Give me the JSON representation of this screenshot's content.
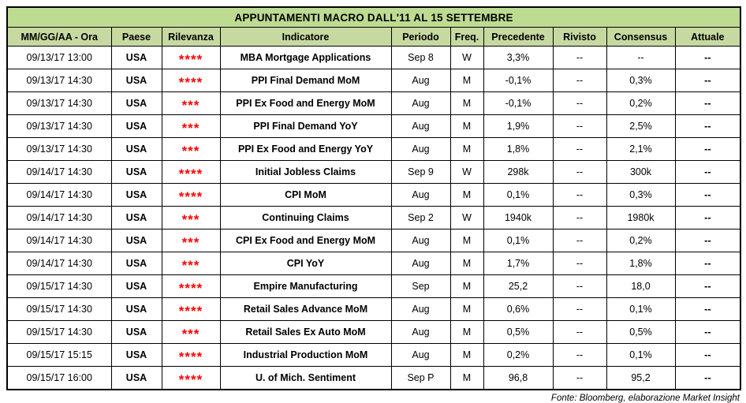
{
  "title": "APPUNTAMENTI MACRO DALL'11 AL 15 SETTEMBRE",
  "columns": [
    "MM/GG/AA - Ora",
    "Paese",
    "Rilevanza",
    "Indicatore",
    "Periodo",
    "Freq.",
    "Precedente",
    "Rivisto",
    "Consensus",
    "Attuale"
  ],
  "rows": [
    {
      "datetime": "09/13/17 13:00",
      "country": "USA",
      "relevance": "****",
      "indicator": "MBA Mortgage Applications",
      "period": "Sep 8",
      "freq": "W",
      "previous": "3,3%",
      "revised": "--",
      "consensus": "--",
      "actual": "--"
    },
    {
      "datetime": "09/13/17 14:30",
      "country": "USA",
      "relevance": "****",
      "indicator": "PPI Final Demand MoM",
      "period": "Aug",
      "freq": "M",
      "previous": "-0,1%",
      "revised": "--",
      "consensus": "0,3%",
      "actual": "--"
    },
    {
      "datetime": "09/13/17 14:30",
      "country": "USA",
      "relevance": "***",
      "indicator": "PPI Ex Food and Energy MoM",
      "period": "Aug",
      "freq": "M",
      "previous": "-0,1%",
      "revised": "--",
      "consensus": "0,2%",
      "actual": "--"
    },
    {
      "datetime": "09/13/17 14:30",
      "country": "USA",
      "relevance": "***",
      "indicator": "PPI Final Demand YoY",
      "period": "Aug",
      "freq": "M",
      "previous": "1,9%",
      "revised": "--",
      "consensus": "2,5%",
      "actual": "--"
    },
    {
      "datetime": "09/13/17 14:30",
      "country": "USA",
      "relevance": "***",
      "indicator": "PPI Ex Food and Energy YoY",
      "period": "Aug",
      "freq": "M",
      "previous": "1,8%",
      "revised": "--",
      "consensus": "2,1%",
      "actual": "--"
    },
    {
      "datetime": "09/14/17 14:30",
      "country": "USA",
      "relevance": "****",
      "indicator": "Initial Jobless Claims",
      "period": "Sep 9",
      "freq": "W",
      "previous": "298k",
      "revised": "--",
      "consensus": "300k",
      "actual": "--"
    },
    {
      "datetime": "09/14/17 14:30",
      "country": "USA",
      "relevance": "****",
      "indicator": "CPI MoM",
      "period": "Aug",
      "freq": "M",
      "previous": "0,1%",
      "revised": "--",
      "consensus": "0,3%",
      "actual": "--"
    },
    {
      "datetime": "09/14/17 14:30",
      "country": "USA",
      "relevance": "***",
      "indicator": "Continuing Claims",
      "period": "Sep 2",
      "freq": "W",
      "previous": "1940k",
      "revised": "--",
      "consensus": "1980k",
      "actual": "--"
    },
    {
      "datetime": "09/14/17 14:30",
      "country": "USA",
      "relevance": "***",
      "indicator": "CPI Ex Food and Energy MoM",
      "period": "Aug",
      "freq": "M",
      "previous": "0,1%",
      "revised": "--",
      "consensus": "0,2%",
      "actual": "--"
    },
    {
      "datetime": "09/14/17 14:30",
      "country": "USA",
      "relevance": "***",
      "indicator": "CPI YoY",
      "period": "Aug",
      "freq": "M",
      "previous": "1,7%",
      "revised": "--",
      "consensus": "1,8%",
      "actual": "--"
    },
    {
      "datetime": "09/15/17 14:30",
      "country": "USA",
      "relevance": "****",
      "indicator": "Empire Manufacturing",
      "period": "Sep",
      "freq": "M",
      "previous": "25,2",
      "revised": "--",
      "consensus": "18,0",
      "actual": "--"
    },
    {
      "datetime": "09/15/17 14:30",
      "country": "USA",
      "relevance": "****",
      "indicator": "Retail Sales Advance MoM",
      "period": "Aug",
      "freq": "M",
      "previous": "0,6%",
      "revised": "--",
      "consensus": "0,1%",
      "actual": "--"
    },
    {
      "datetime": "09/15/17 14:30",
      "country": "USA",
      "relevance": "***",
      "indicator": "Retail Sales Ex Auto MoM",
      "period": "Aug",
      "freq": "M",
      "previous": "0,5%",
      "revised": "--",
      "consensus": "0,5%",
      "actual": "--"
    },
    {
      "datetime": "09/15/17 15:15",
      "country": "USA",
      "relevance": "****",
      "indicator": "Industrial Production MoM",
      "period": "Aug",
      "freq": "M",
      "previous": "0,2%",
      "revised": "--",
      "consensus": "0,1%",
      "actual": "--"
    },
    {
      "datetime": "09/15/17 16:00",
      "country": "USA",
      "relevance": "****",
      "indicator": "U. of Mich. Sentiment",
      "period": "Sep P",
      "freq": "M",
      "previous": "96,8",
      "revised": "--",
      "consensus": "95,2",
      "actual": "--"
    }
  ],
  "footer": "Fonte: Bloomberg, elaborazione Market Insight",
  "colors": {
    "title_bg": "#bedb92",
    "header_bg": "#c6d9a0",
    "star": "#ff0000"
  }
}
